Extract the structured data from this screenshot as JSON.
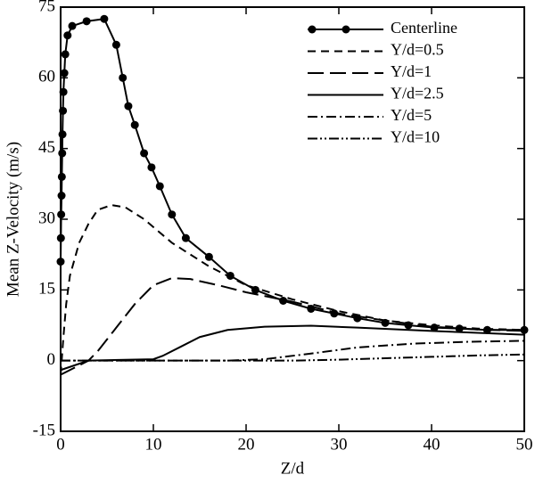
{
  "chart_data": {
    "type": "line",
    "x_label": "Z/d",
    "y_label": "Mean Z-Velocity (m/s)",
    "xlim": [
      0,
      50
    ],
    "ylim": [
      -15,
      75
    ],
    "xticks": [
      0,
      10,
      20,
      30,
      40,
      50
    ],
    "yticks": [
      -15,
      0,
      15,
      30,
      45,
      60,
      75
    ],
    "legend": "upper right",
    "series": [
      {
        "name": "Centerline",
        "color": "#000000",
        "dash": "solid",
        "marker": "circle",
        "x": [
          0,
          0.03,
          0.06,
          0.1,
          0.13,
          0.17,
          0.2,
          0.25,
          0.3,
          0.4,
          0.5,
          0.75,
          1.25,
          2.8,
          4.7,
          6.0,
          6.7,
          7.3,
          8.0,
          9.0,
          9.8,
          10.7,
          12.0,
          13.5,
          16.0,
          18.3,
          21.0,
          24.0,
          27.0,
          29.5,
          32.0,
          35.0,
          37.5,
          40.3,
          43.0,
          46.0,
          50.0
        ],
        "values": [
          21,
          26,
          31,
          35,
          39,
          44,
          48,
          53,
          57,
          61,
          65,
          69,
          71,
          72,
          72.5,
          67,
          60,
          54,
          50,
          44,
          41,
          37,
          31,
          26,
          22,
          18,
          15,
          12.7,
          11,
          10,
          9,
          8,
          7.5,
          7,
          6.8,
          6.5,
          6.5
        ]
      },
      {
        "name": "Y/d=0.5",
        "color": "#000000",
        "dash": "dashed",
        "x": [
          0,
          0.3,
          0.6,
          1,
          2,
          3,
          4,
          5.5,
          7,
          9,
          12,
          16,
          20,
          25,
          30,
          35,
          40,
          45,
          50
        ],
        "values": [
          -3,
          5,
          12,
          18,
          25,
          29,
          32,
          33,
          32.5,
          30,
          25,
          20,
          16,
          13,
          10.5,
          8.5,
          7.5,
          6.8,
          6.5
        ]
      },
      {
        "name": "Y/d=1",
        "color": "#000000",
        "dash": "longdash",
        "x": [
          0,
          1,
          2,
          3,
          4,
          5,
          6,
          8,
          10,
          12,
          14,
          17,
          20,
          25,
          30,
          35,
          40,
          45,
          50
        ],
        "values": [
          -3,
          -2,
          -1,
          0,
          2,
          4.5,
          7,
          12,
          16,
          17.5,
          17.3,
          16,
          14.5,
          12.5,
          10,
          8.5,
          7.2,
          6.6,
          6.3
        ]
      },
      {
        "name": "Y/d=2.5",
        "color": "#000000",
        "dash": "solid",
        "x": [
          0,
          3,
          10,
          11,
          13,
          15,
          18,
          22,
          27,
          32,
          40,
          50
        ],
        "values": [
          -2,
          0,
          0.3,
          1,
          3,
          5,
          6.5,
          7.2,
          7.4,
          7,
          6.3,
          5.5
        ]
      },
      {
        "name": "Y/d=5",
        "color": "#000000",
        "dash": "dashdot",
        "x": [
          0,
          18,
          22,
          27,
          32,
          38,
          44,
          50
        ],
        "values": [
          0,
          0,
          0.3,
          1.5,
          2.8,
          3.6,
          4,
          4.2
        ]
      },
      {
        "name": "Y/d=10",
        "color": "#000000",
        "dash": "dashdotdot",
        "x": [
          0,
          25,
          30,
          35,
          40,
          45,
          50
        ],
        "values": [
          0,
          0,
          0.2,
          0.5,
          0.8,
          1.1,
          1.3
        ]
      }
    ]
  }
}
